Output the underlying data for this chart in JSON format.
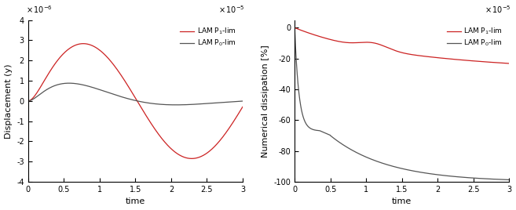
{
  "left": {
    "xlim": [
      0,
      3e-05
    ],
    "ylim": [
      -4e-06,
      4e-06
    ],
    "xlabel": "time",
    "ylabel": "Displacement (y)",
    "legend": [
      "LAM P$_1$-lim",
      "LAM P$_0$-lim"
    ],
    "colors": [
      "#cc2222",
      "#555555"
    ],
    "xticks": [
      0,
      5e-06,
      1e-05,
      1.5e-05,
      2e-05,
      2.5e-05,
      3e-05
    ],
    "xticklabels": [
      "0",
      "0.5",
      "1",
      "1.5",
      "2",
      "2.5",
      "3"
    ],
    "yticks": [
      -4e-06,
      -3e-06,
      -2e-06,
      -1e-06,
      0,
      1e-06,
      2e-06,
      3e-06,
      4e-06
    ],
    "yticklabels": [
      "-4",
      "-3",
      "-2",
      "-1",
      "0",
      "1",
      "2",
      "3",
      "4"
    ]
  },
  "right": {
    "xlim": [
      0,
      3e-05
    ],
    "ylim": [
      -100,
      5
    ],
    "xlabel": "time",
    "ylabel": "Numerical dissipation [%]",
    "legend": [
      "LAM P$_1$-lim",
      "LAM P$_0$-lim"
    ],
    "colors": [
      "#cc2222",
      "#555555"
    ],
    "xticks": [
      0,
      5e-06,
      1e-05,
      1.5e-05,
      2e-05,
      2.5e-05,
      3e-05
    ],
    "xticklabels": [
      "0",
      "0.5",
      "1",
      "1.5",
      "2",
      "2.5",
      "3"
    ],
    "yticks": [
      -100,
      -80,
      -60,
      -40,
      -20,
      0
    ],
    "yticklabels": [
      "-100",
      "-80",
      "-60",
      "-40",
      "-20",
      "0"
    ]
  }
}
